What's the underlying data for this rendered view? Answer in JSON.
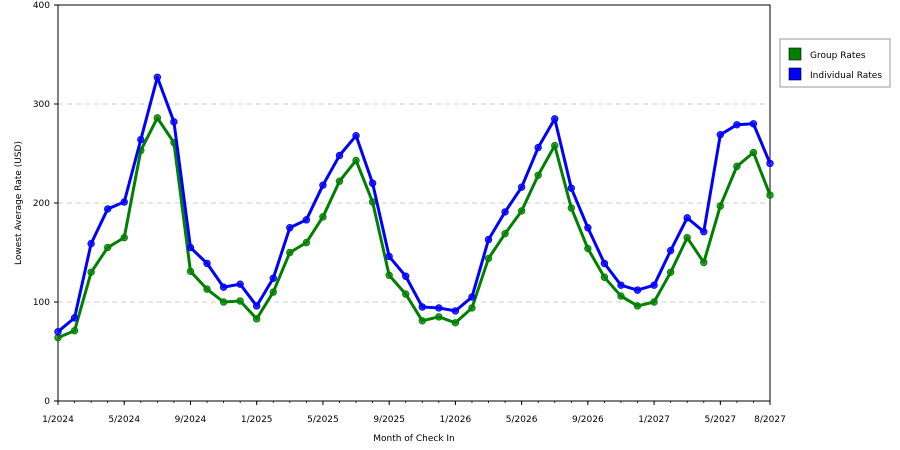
{
  "chart_data": {
    "type": "line",
    "xlabel": "Month of Check In",
    "ylabel": "Lowest Average Rate (USD)",
    "ylim": [
      0,
      400
    ],
    "yticks": [
      0,
      100,
      200,
      300,
      400
    ],
    "x_tick_labels": [
      "1/2024",
      "5/2024",
      "9/2024",
      "1/2025",
      "5/2025",
      "9/2025",
      "1/2026",
      "5/2026",
      "9/2026",
      "1/2027",
      "5/2027",
      "8/2027"
    ],
    "x": [
      "1/2024",
      "2/2024",
      "3/2024",
      "4/2024",
      "5/2024",
      "6/2024",
      "7/2024",
      "8/2024",
      "9/2024",
      "10/2024",
      "11/2024",
      "12/2024",
      "1/2025",
      "2/2025",
      "3/2025",
      "4/2025",
      "5/2025",
      "6/2025",
      "7/2025",
      "8/2025",
      "9/2025",
      "10/2025",
      "11/2025",
      "12/2025",
      "1/2026",
      "2/2026",
      "3/2026",
      "4/2026",
      "5/2026",
      "6/2026",
      "7/2026",
      "8/2026",
      "9/2026",
      "10/2026",
      "11/2026",
      "12/2026",
      "1/2027",
      "2/2027",
      "3/2027",
      "4/2027",
      "5/2027",
      "6/2027",
      "7/2027",
      "8/2027"
    ],
    "grid": "horizontal dashed",
    "legend_position": "right",
    "series": [
      {
        "name": "Group Rates",
        "color": "#008000",
        "values": [
          64,
          71,
          130,
          155,
          165,
          253,
          286,
          261,
          131,
          113,
          100,
          101,
          83,
          110,
          150,
          160,
          186,
          222,
          243,
          201,
          127,
          108,
          81,
          85,
          79,
          94,
          144,
          169,
          192,
          228,
          258,
          195,
          154,
          125,
          106,
          96,
          100,
          130,
          165,
          140,
          197,
          237,
          251,
          208
        ]
      },
      {
        "name": "Individual Rates",
        "color": "#0000ff",
        "values": [
          70,
          84,
          159,
          194,
          201,
          264,
          327,
          282,
          155,
          139,
          115,
          118,
          96,
          124,
          175,
          183,
          218,
          248,
          268,
          220,
          146,
          126,
          95,
          94,
          91,
          105,
          163,
          191,
          216,
          256,
          285,
          215,
          175,
          139,
          117,
          112,
          117,
          152,
          185,
          171,
          269,
          279,
          280,
          240
        ]
      }
    ]
  }
}
